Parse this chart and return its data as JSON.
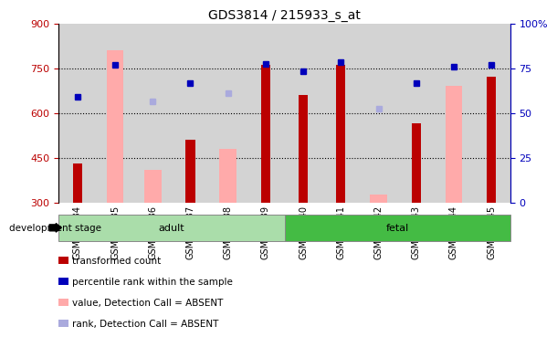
{
  "title": "GDS3814 / 215933_s_at",
  "samples": [
    "GSM440234",
    "GSM440235",
    "GSM440236",
    "GSM440237",
    "GSM440238",
    "GSM440239",
    "GSM440240",
    "GSM440241",
    "GSM440242",
    "GSM440243",
    "GSM440244",
    "GSM440245"
  ],
  "red_bars": [
    430,
    null,
    null,
    510,
    null,
    760,
    660,
    760,
    null,
    565,
    null,
    720
  ],
  "pink_bars": [
    null,
    810,
    410,
    null,
    480,
    null,
    null,
    null,
    325,
    null,
    690,
    null
  ],
  "blue_squares": [
    655,
    760,
    null,
    700,
    null,
    765,
    740,
    770,
    null,
    700,
    755,
    760
  ],
  "lightblue_squares": [
    null,
    null,
    640,
    null,
    665,
    null,
    null,
    null,
    615,
    null,
    null,
    null
  ],
  "ylim_left": [
    300,
    900
  ],
  "ylim_right": [
    0,
    100
  ],
  "yticks_left": [
    300,
    450,
    600,
    750,
    900
  ],
  "yticks_right": [
    0,
    25,
    50,
    75,
    100
  ],
  "n_adult": 6,
  "n_fetal": 6,
  "adult_color": "#aaddaa",
  "fetal_color": "#44bb44",
  "bar_bg_color": "#d3d3d3",
  "red_color": "#bb0000",
  "pink_color": "#ffaaaa",
  "blue_color": "#0000bb",
  "lightblue_color": "#aaaadd",
  "development_label": "development stage",
  "legend_items": [
    {
      "label": "transformed count",
      "color": "#bb0000"
    },
    {
      "label": "percentile rank within the sample",
      "color": "#0000bb"
    },
    {
      "label": "value, Detection Call = ABSENT",
      "color": "#ffaaaa"
    },
    {
      "label": "rank, Detection Call = ABSENT",
      "color": "#aaaadd"
    }
  ]
}
